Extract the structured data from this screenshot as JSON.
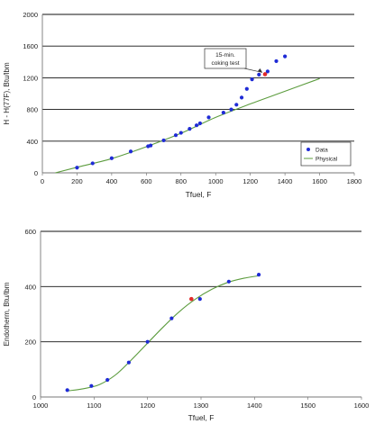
{
  "chart_data": [
    {
      "type": "scatter",
      "title": "",
      "xlabel": "Tfuel, F",
      "ylabel": "H - H(77F), Btu/lbm",
      "xlim": [
        0,
        1800
      ],
      "ylim": [
        0,
        2000
      ],
      "x_ticks": [
        "0",
        "200",
        "400",
        "600",
        "800",
        "1000",
        "1200",
        "1400",
        "1600",
        "1800"
      ],
      "y_ticks": [
        "0",
        "400",
        "800",
        "1200",
        "1600",
        "2000"
      ],
      "grid": "horizontal",
      "legend_position": "bottom-right",
      "legend": [
        "Data",
        "Physical"
      ],
      "series": [
        {
          "name": "Data",
          "color": "#1f2bd6",
          "x": [
            200,
            290,
            400,
            510,
            610,
            625,
            700,
            770,
            800,
            850,
            890,
            910,
            960,
            1045,
            1090,
            1120,
            1150,
            1180,
            1210,
            1250,
            1300,
            1350,
            1400
          ],
          "y": [
            65,
            120,
            185,
            270,
            335,
            345,
            410,
            475,
            505,
            555,
            600,
            625,
            700,
            760,
            800,
            860,
            950,
            1060,
            1180,
            1240,
            1280,
            1410,
            1470
          ]
        },
        {
          "name": "Physical",
          "color": "#5c9c3e",
          "x": [
            75,
            200,
            400,
            600,
            800,
            1000,
            1200,
            1400,
            1600
          ],
          "y": [
            0,
            70,
            180,
            330,
            500,
            700,
            870,
            1030,
            1190
          ]
        }
      ],
      "highlight": {
        "x": 1285,
        "y": 1245,
        "color": "#e12a2a"
      },
      "annotation": {
        "text_lines": [
          "15-min.",
          "coking test"
        ],
        "x": 1285,
        "y": 1245
      }
    },
    {
      "type": "line",
      "title": "",
      "xlabel": "Tfuel, F",
      "ylabel": "Endotherm, Btu/lbm",
      "xlim": [
        1000,
        1600
      ],
      "ylim": [
        0,
        600
      ],
      "x_ticks": [
        "1000",
        "1100",
        "1200",
        "1300",
        "1400",
        "1500",
        "1600"
      ],
      "y_ticks": [
        "0",
        "200",
        "400",
        "600"
      ],
      "grid": "horizontal",
      "series": [
        {
          "name": "",
          "color": "#1f2bd6",
          "x": [
            1050,
            1095,
            1125,
            1165,
            1200,
            1245,
            1298,
            1352,
            1408
          ],
          "y": [
            25,
            40,
            62,
            125,
            200,
            285,
            355,
            418,
            443
          ]
        },
        {
          "name": "",
          "color": "#5c9c3e",
          "x": [
            1050,
            1080,
            1110,
            1140,
            1170,
            1200,
            1230,
            1260,
            1290,
            1320,
            1350,
            1380,
            1410
          ],
          "y": [
            22,
            30,
            45,
            80,
            135,
            195,
            255,
            310,
            355,
            390,
            415,
            430,
            440
          ]
        }
      ],
      "highlight": {
        "x": 1282,
        "y": 355,
        "color": "#e12a2a"
      }
    }
  ]
}
